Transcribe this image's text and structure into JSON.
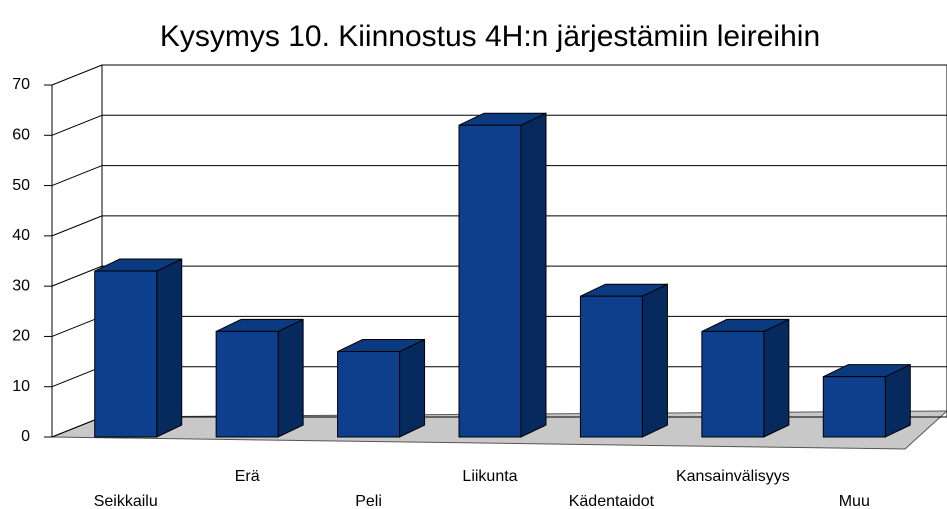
{
  "chart_data": {
    "type": "bar",
    "title": "Kysymys 10. Kiinnostus 4H:n järjestämiin leireihin",
    "categories": [
      "Seikkailu",
      "Erä",
      "Peli",
      "Liikunta",
      "Kädentaidot",
      "Kansainvälisyys",
      "Muu"
    ],
    "values": [
      33,
      21,
      17,
      62,
      28,
      21,
      12
    ],
    "color": "#0d3f8c",
    "ylim": [
      0,
      70
    ],
    "yticks": [
      0,
      10,
      20,
      30,
      40,
      50,
      60,
      70
    ],
    "grid": true
  }
}
